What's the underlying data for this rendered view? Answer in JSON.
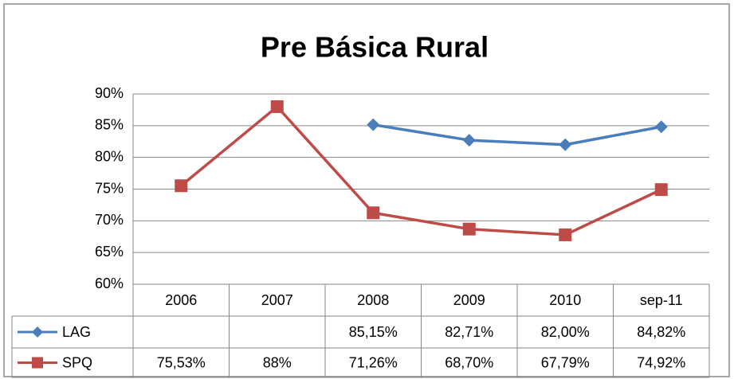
{
  "chart_data": {
    "type": "line",
    "title": "Pre Básica Rural",
    "categories": [
      "2006",
      "2007",
      "2008",
      "2009",
      "2010",
      "sep-11"
    ],
    "series": [
      {
        "name": "LAG",
        "color": "#4a7ebb",
        "marker": "diamond",
        "values": [
          null,
          null,
          85.15,
          82.71,
          82.0,
          84.82
        ],
        "value_labels": [
          null,
          null,
          "85,15%",
          "82,71%",
          "82,00%",
          "84,82%"
        ]
      },
      {
        "name": "SPQ",
        "color": "#be4b48",
        "marker": "square",
        "values": [
          75.53,
          88,
          71.26,
          68.7,
          67.79,
          74.92
        ],
        "value_labels": [
          "75,53%",
          "88%",
          "71,26%",
          "68,70%",
          "67,79%",
          "74,92%"
        ]
      }
    ],
    "ylim": [
      60,
      90
    ],
    "yticks": [
      {
        "value": 60,
        "label": "60%"
      },
      {
        "value": 65,
        "label": "65%"
      },
      {
        "value": 70,
        "label": "70%"
      },
      {
        "value": 75,
        "label": "75%"
      },
      {
        "value": 80,
        "label": "80%"
      },
      {
        "value": 85,
        "label": "85%"
      },
      {
        "value": 90,
        "label": "90%"
      }
    ],
    "grid": true
  }
}
